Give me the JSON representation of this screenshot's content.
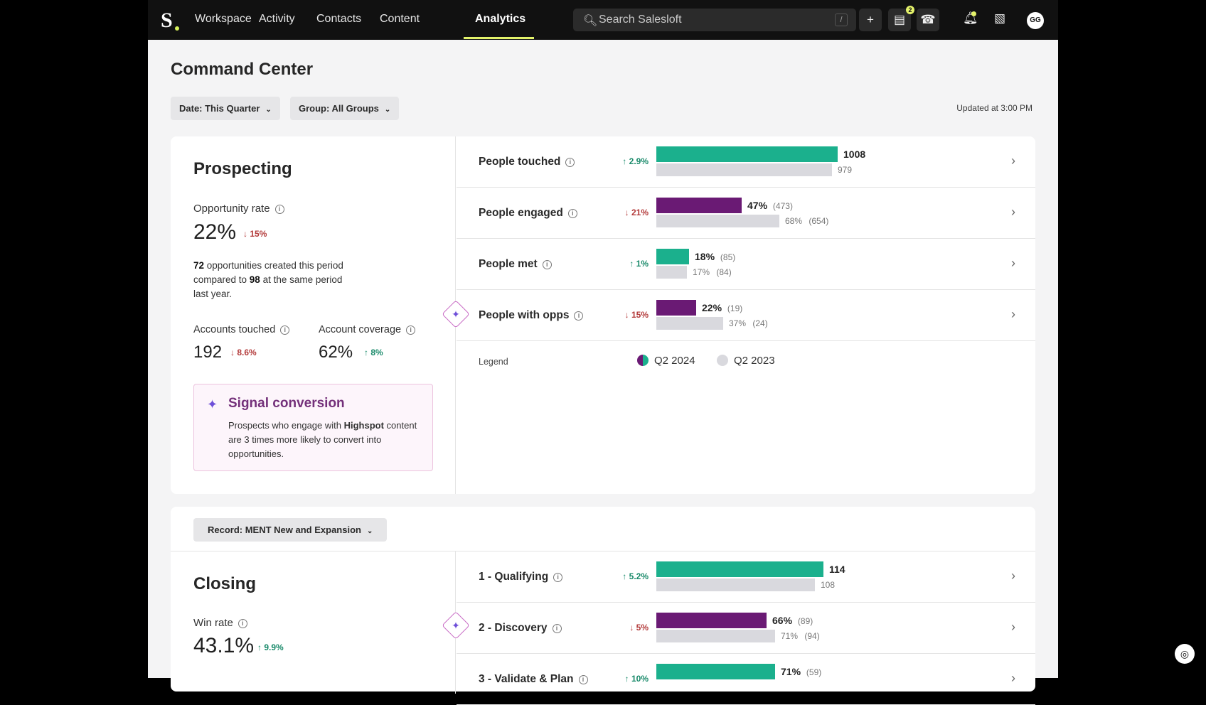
{
  "nav": {
    "logo": "S",
    "items": [
      "Workspace",
      "Activity",
      "Contacts",
      "Content",
      "Analytics"
    ],
    "active": "Analytics",
    "search_placeholder": "Search Salesloft",
    "search_shortcut": "/",
    "add_icon": "plus-icon",
    "messages_badge": "2",
    "avatar": "GG"
  },
  "header": {
    "title": "Command Center",
    "date_filter": "Date: This Quarter",
    "group_filter": "Group: All Groups",
    "updated": "Updated at 3:00 PM"
  },
  "prospecting": {
    "title": "Prospecting",
    "opp_rate_label": "Opportunity rate",
    "opp_rate_value": "22%",
    "opp_rate_delta": "15%",
    "opp_count": "72",
    "para_mid": " opportunities created this period compared to ",
    "opp_prev": "98",
    "para_end": " at the same period last year.",
    "accounts_label": "Accounts touched",
    "accounts_value": "192",
    "accounts_delta": "8.6%",
    "coverage_label": "Account coverage",
    "coverage_value": "62%",
    "coverage_delta": "8%",
    "signal": {
      "title": "Signal conversion",
      "text_pre": "Prospects who engage with ",
      "text_bold": "Highspot",
      "text_post": " content are 3 times more likely to convert into opportunities."
    },
    "rows": [
      {
        "label": "People touched",
        "delta": "2.9%",
        "dir": "up",
        "current": "1008",
        "current_count": "",
        "previous": "979",
        "previous_count": "",
        "cur_frac": 1.0,
        "prev_frac": 0.97,
        "color": "#1bb08d"
      },
      {
        "label": "People engaged",
        "delta": "21%",
        "dir": "down",
        "current": "47%",
        "current_count": "(473)",
        "previous": "68%",
        "previous_count": "(654)",
        "cur_frac": 0.47,
        "prev_frac": 0.68,
        "color": "#6a1a74"
      },
      {
        "label": "People met",
        "delta": "1%",
        "dir": "up",
        "current": "18%",
        "current_count": "(85)",
        "previous": "17%",
        "previous_count": "(84)",
        "cur_frac": 0.18,
        "prev_frac": 0.17,
        "color": "#1bb08d"
      },
      {
        "label": "People with opps",
        "delta": "15%",
        "dir": "down",
        "current": "22%",
        "current_count": "(19)",
        "previous": "37%",
        "previous_count": "(24)",
        "cur_frac": 0.22,
        "prev_frac": 0.37,
        "color": "#6a1a74"
      }
    ],
    "legend": {
      "label": "Legend",
      "current": "Q2 2024",
      "previous": "Q2 2023"
    }
  },
  "closing": {
    "record_filter": "Record: MENT New and Expansion",
    "title": "Closing",
    "win_rate_label": "Win rate",
    "win_rate_value": "43.1%",
    "win_rate_delta": "9.9%",
    "rows": [
      {
        "label": "1 - Qualifying",
        "delta": "5.2%",
        "dir": "up",
        "current": "114",
        "current_count": "",
        "previous": "108",
        "previous_count": "",
        "cur_frac": 1.0,
        "prev_frac": 0.95,
        "color": "#1bb08d"
      },
      {
        "label": "2 - Discovery",
        "delta": "5%",
        "dir": "down",
        "current": "66%",
        "current_count": "(89)",
        "previous": "71%",
        "previous_count": "(94)",
        "cur_frac": 0.66,
        "prev_frac": 0.71,
        "color": "#6a1a74"
      },
      {
        "label": "3 - Validate & Plan",
        "delta": "10%",
        "dir": "up",
        "current": "71%",
        "current_count": "(59)",
        "previous": "",
        "previous_count": "",
        "cur_frac": 0.71,
        "prev_frac": 0,
        "color": "#1bb08d"
      }
    ]
  },
  "colors": {
    "up": "#198a6a",
    "down": "#b33a3a",
    "current_green": "#1bb08d",
    "current_purple": "#6a1a74",
    "previous": "#d9d9de"
  }
}
